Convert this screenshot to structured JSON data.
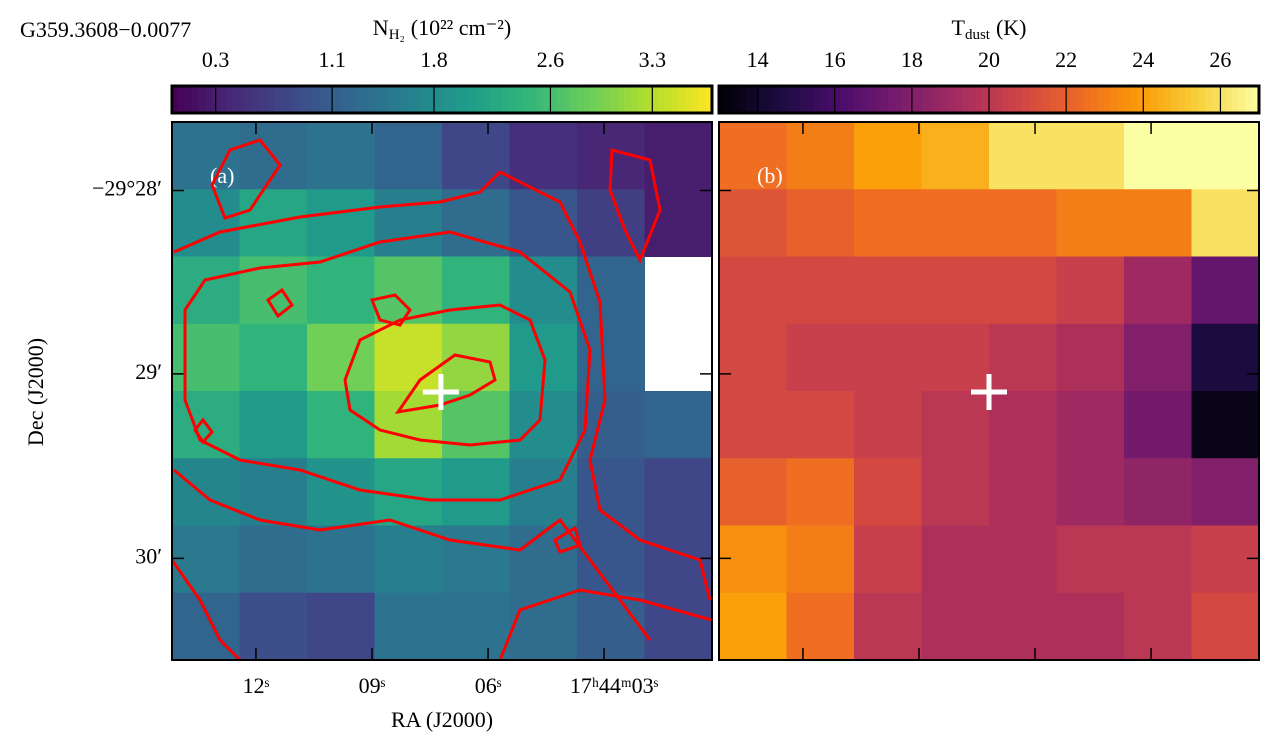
{
  "title": "G359.3608−0.0077",
  "chart_data": [
    {
      "type": "heatmap",
      "panel_label": "(a)",
      "colormap": "viridis",
      "colorbar_label": {
        "symbol": "N",
        "subscript": "H₂",
        "unit": "(10²² cm⁻²)"
      },
      "clim": [
        0.0,
        3.71
      ],
      "cticks": [
        0.3,
        1.1,
        1.8,
        2.6,
        3.3
      ],
      "x_label": "RA (J2000)",
      "y_label": "Dec (J2000)",
      "xlim": [
        14.17,
        0.21
      ],
      "xticks": [
        {
          "value": 12,
          "label": "12ˢ"
        },
        {
          "value": 9,
          "label": "09ˢ"
        },
        {
          "value": 6,
          "label": "06ˢ"
        },
        {
          "value": 3,
          "label": "17ʰ44ᵐ03ˢ"
        }
      ],
      "ylim": [
        -29.5092,
        -29.4605
      ],
      "yticks": [
        {
          "value": -29.4667,
          "label": "−29°28′"
        },
        {
          "value": -29.4833,
          "label": "29′"
        },
        {
          "value": -29.5,
          "label": "30′"
        }
      ],
      "z": [
        [
          1.4,
          1.3,
          1.4,
          1.2,
          0.8,
          0.5,
          0.4,
          0.3
        ],
        [
          1.8,
          2.2,
          2.0,
          1.6,
          1.3,
          1.0,
          0.7,
          0.3
        ],
        [
          2.3,
          2.6,
          2.4,
          2.7,
          2.4,
          1.8,
          1.2,
          null
        ],
        [
          2.6,
          2.4,
          2.9,
          3.4,
          3.1,
          2.0,
          1.2,
          null
        ],
        [
          2.3,
          2.0,
          2.4,
          3.2,
          2.7,
          1.8,
          1.1,
          1.2
        ],
        [
          1.7,
          1.6,
          1.9,
          2.2,
          2.0,
          1.6,
          1.0,
          0.8
        ],
        [
          1.5,
          1.3,
          1.4,
          1.6,
          1.5,
          1.3,
          1.0,
          0.8
        ],
        [
          1.2,
          0.9,
          0.8,
          1.4,
          1.4,
          1.3,
          1.1,
          0.8
        ]
      ]
    },
    {
      "type": "heatmap",
      "panel_label": "(b)",
      "colormap": "inferno",
      "colorbar_label": {
        "symbol": "T",
        "subscript": "dust",
        "unit": "(K)"
      },
      "clim": [
        13.0,
        27.0
      ],
      "cticks": [
        14,
        16,
        18,
        20,
        22,
        24,
        26
      ],
      "z": [
        [
          22.5,
          23,
          24,
          24.5,
          26,
          26,
          27,
          27
        ],
        [
          21.5,
          22,
          22.5,
          22.5,
          22.5,
          23,
          23,
          26
        ],
        [
          21,
          21,
          21,
          21,
          21,
          20.5,
          19,
          17
        ],
        [
          21,
          20.5,
          20.5,
          20.5,
          20,
          19.5,
          18,
          14.5
        ],
        [
          21,
          21,
          20.5,
          20,
          19.5,
          19,
          17.5,
          13.5
        ],
        [
          22,
          22.5,
          21,
          20,
          19.5,
          19,
          18.5,
          18
        ],
        [
          23.5,
          23,
          20.5,
          19.5,
          19.5,
          20,
          20,
          20.5
        ],
        [
          24,
          22.5,
          20,
          19.5,
          19.5,
          19.5,
          20,
          21
        ]
      ]
    }
  ]
}
